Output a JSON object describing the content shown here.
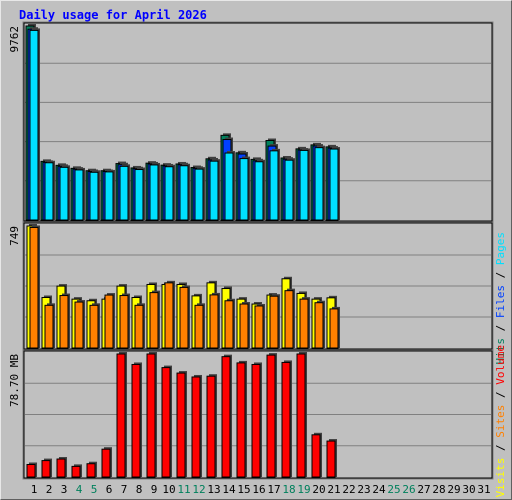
{
  "header": {
    "title": "Daily usage for April 2026"
  },
  "colors": {
    "hits": "#00805c",
    "files": "#0040ff",
    "pages": "#00e0ff",
    "visits": "#ffff00",
    "sites": "#ff8000",
    "volume": "#ff0000",
    "weekend": "#00805c",
    "weekday": "#000000"
  },
  "chart_data": [
    {
      "type": "bar",
      "title": "Hits / Files / Pages",
      "ylabel": "9762",
      "ylim": [
        0,
        9762
      ],
      "grid": true,
      "x": [
        1,
        2,
        3,
        4,
        5,
        6,
        7,
        8,
        9,
        10,
        11,
        12,
        13,
        14,
        15,
        16,
        17,
        18,
        19,
        20,
        21
      ],
      "series": [
        {
          "name": "Hits",
          "values": [
            9762,
            2950,
            2750,
            2600,
            2480,
            2480,
            2840,
            2620,
            2860,
            2760,
            2820,
            2640,
            3080,
            4260,
            3380,
            3050,
            4000,
            3120,
            3580,
            3780,
            3680
          ]
        },
        {
          "name": "Files",
          "values": [
            9600,
            2900,
            2700,
            2560,
            2440,
            2440,
            2780,
            2580,
            2820,
            2720,
            2780,
            2600,
            3020,
            4050,
            3320,
            2980,
            3720,
            3060,
            3520,
            3720,
            3620
          ]
        },
        {
          "name": "Pages",
          "values": [
            9540,
            2880,
            2650,
            2520,
            2400,
            2420,
            2700,
            2540,
            2770,
            2680,
            2730,
            2560,
            2960,
            3370,
            3090,
            2930,
            3480,
            3010,
            3500,
            3640,
            3570
          ]
        }
      ]
    },
    {
      "type": "bar",
      "title": "Visits / Sites",
      "ylabel": "749",
      "ylim": [
        0,
        749
      ],
      "grid": true,
      "x": [
        1,
        2,
        3,
        4,
        5,
        6,
        7,
        8,
        9,
        10,
        11,
        12,
        13,
        14,
        15,
        16,
        17,
        18,
        19,
        20,
        21
      ],
      "series": [
        {
          "name": "Visits",
          "values": [
            749,
            310,
            380,
            300,
            290,
            300,
            380,
            310,
            390,
            390,
            390,
            320,
            400,
            365,
            300,
            270,
            325,
            425,
            335,
            300,
            308
          ]
        },
        {
          "name": "Sites",
          "values": [
            740,
            262,
            322,
            282,
            262,
            325,
            322,
            262,
            340,
            400,
            372,
            262,
            326,
            290,
            270,
            258,
            318,
            352,
            300,
            278,
            240
          ]
        }
      ]
    },
    {
      "type": "bar",
      "title": "Volume",
      "ylabel": "78.70 MB",
      "ylim": [
        0,
        78.7
      ],
      "grid": true,
      "x": [
        1,
        2,
        3,
        4,
        5,
        6,
        7,
        8,
        9,
        10,
        11,
        12,
        13,
        14,
        15,
        16,
        17,
        18,
        19,
        20,
        21
      ],
      "series": [
        {
          "name": "Volume",
          "values": [
            8.0,
            10.5,
            11.5,
            6.8,
            8.5,
            17.8,
            78.7,
            72.0,
            78.7,
            70.0,
            66.5,
            64.0,
            64.5,
            77.0,
            73.0,
            72.0,
            78.0,
            73.3,
            78.7,
            27.0,
            23.0
          ]
        }
      ]
    }
  ],
  "xaxis": {
    "labels": [
      "1",
      "2",
      "3",
      "4",
      "5",
      "6",
      "7",
      "8",
      "9",
      "10",
      "11",
      "12",
      "13",
      "14",
      "15",
      "16",
      "17",
      "18",
      "19",
      "20",
      "21",
      "22",
      "23",
      "24",
      "25",
      "26",
      "27",
      "28",
      "29",
      "30",
      "31"
    ],
    "weekend_days": [
      4,
      5,
      11,
      12,
      18,
      19,
      25,
      26
    ]
  },
  "legend": {
    "top": {
      "items": [
        "Hits",
        "Files",
        "Pages"
      ],
      "separator": " / "
    },
    "bottom": {
      "items": [
        "Visits",
        "Sites",
        "Volume"
      ],
      "separator": " / "
    },
    "separator": " / "
  }
}
